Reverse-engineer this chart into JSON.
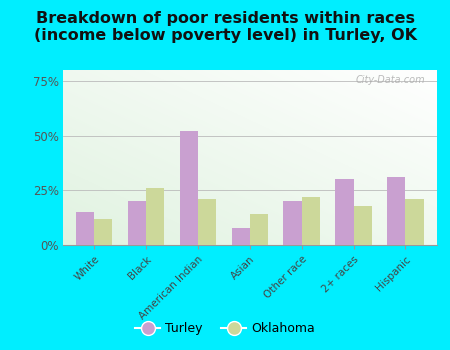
{
  "title": "Breakdown of poor residents within races\n(income below poverty level) in Turley, OK",
  "categories": [
    "White",
    "Black",
    "American Indian",
    "Asian",
    "Other race",
    "2+ races",
    "Hispanic"
  ],
  "turley_values": [
    15,
    20,
    52,
    8,
    20,
    30,
    31
  ],
  "oklahoma_values": [
    12,
    26,
    21,
    14,
    22,
    18,
    21
  ],
  "turley_color": "#c9a0d0",
  "oklahoma_color": "#ccd89a",
  "background_outer": "#00eeff",
  "title_fontsize": 11.5,
  "ylim": [
    0,
    80
  ],
  "yticks": [
    0,
    25,
    50,
    75
  ],
  "ytick_labels": [
    "0%",
    "25%",
    "50%",
    "75%"
  ],
  "bar_width": 0.35,
  "legend_turley": "Turley",
  "legend_oklahoma": "Oklahoma",
  "watermark": "City-Data.com"
}
